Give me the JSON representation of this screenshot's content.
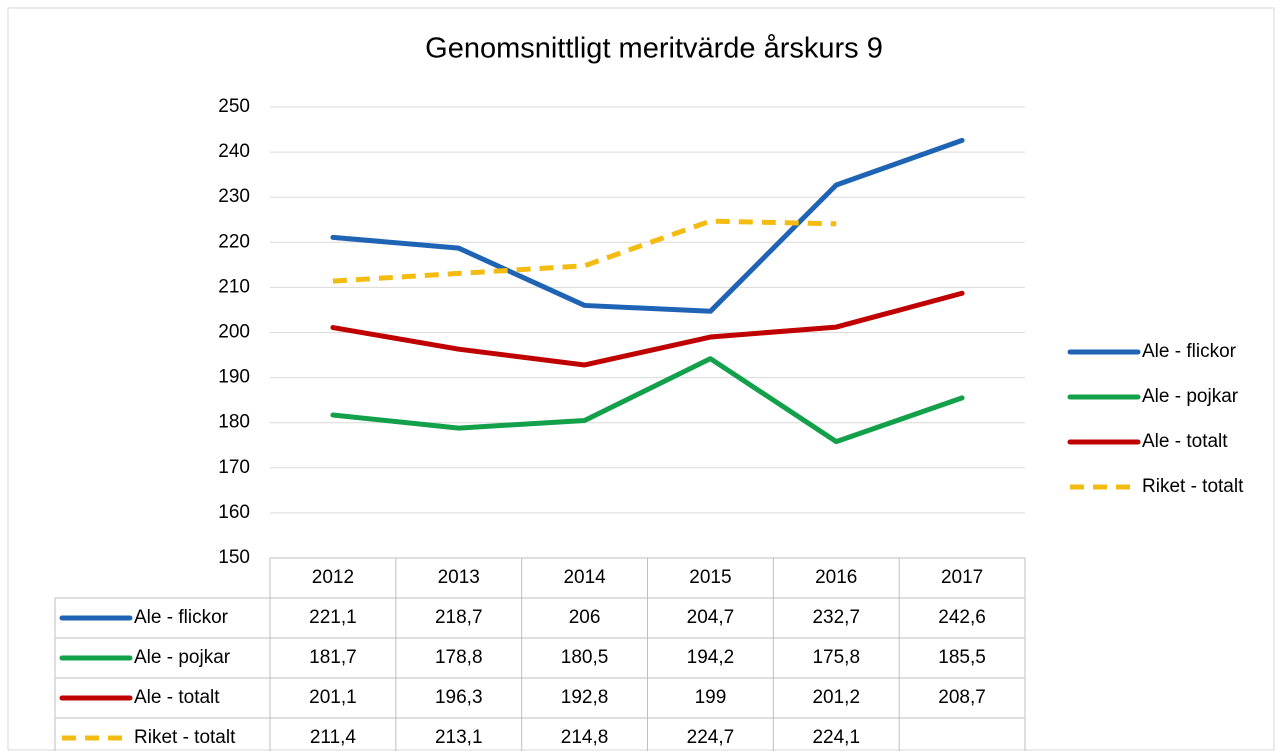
{
  "chart_data": {
    "type": "line",
    "title": "Genomsnittligt meritvärde årskurs 9",
    "categories": [
      "2012",
      "2013",
      "2014",
      "2015",
      "2016",
      "2017"
    ],
    "series": [
      {
        "name": "Ale - flickor",
        "color": "#1f63b5",
        "line_style": "solid",
        "values": [
          221.1,
          218.7,
          206,
          204.7,
          232.7,
          242.6
        ],
        "value_labels": [
          "221,1",
          "218,7",
          "206",
          "204,7",
          "232,7",
          "242,6"
        ]
      },
      {
        "name": "Ale - pojkar",
        "color": "#12a04a",
        "line_style": "solid",
        "values": [
          181.7,
          178.8,
          180.5,
          194.2,
          175.8,
          185.5
        ],
        "value_labels": [
          "181,7",
          "178,8",
          "180,5",
          "194,2",
          "175,8",
          "185,5"
        ]
      },
      {
        "name": "Ale - totalt",
        "color": "#c00000",
        "line_style": "solid",
        "values": [
          201.1,
          196.3,
          192.8,
          199,
          201.2,
          208.7
        ],
        "value_labels": [
          "201,1",
          "196,3",
          "192,8",
          "199",
          "201,2",
          "208,7"
        ]
      },
      {
        "name": "Riket - totalt",
        "color": "#f4bb11",
        "line_style": "dashed",
        "values": [
          211.4,
          213.1,
          214.8,
          224.7,
          224.1,
          null
        ],
        "value_labels": [
          "211,4",
          "213,1",
          "214,8",
          "224,7",
          "224,1",
          null
        ]
      }
    ],
    "ylim": [
      150,
      250
    ],
    "yticks": [
      150,
      160,
      170,
      180,
      190,
      200,
      210,
      220,
      230,
      240,
      250
    ],
    "grid": true,
    "legend": "right"
  }
}
